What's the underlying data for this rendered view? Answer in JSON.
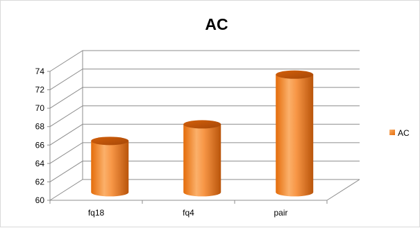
{
  "chart_data": {
    "type": "bar",
    "title": "AC",
    "categories": [
      "fq18",
      "fq4",
      "pair"
    ],
    "series": [
      {
        "name": "AC",
        "values": [
          65.5,
          67.3,
          72.7
        ],
        "color": "#f79646"
      }
    ],
    "xlabel": "",
    "ylabel": "",
    "ylim": [
      60,
      74
    ],
    "yticks": [
      60,
      62,
      64,
      66,
      68,
      70,
      72,
      74
    ],
    "grid": true,
    "legend_position": "right",
    "style": "3d-cylinder"
  }
}
